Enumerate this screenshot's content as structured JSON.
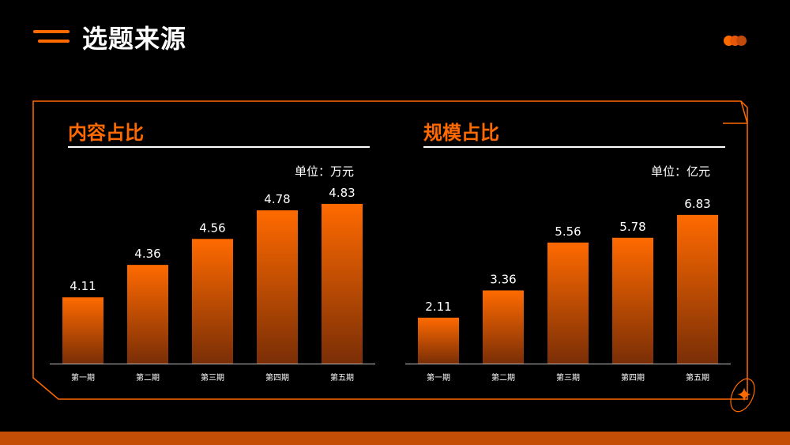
{
  "page": {
    "title": "选题来源"
  },
  "colors": {
    "accent": "#ff6a00",
    "bar_top": "#ff6a00",
    "bar_bottom": "#7a2e06",
    "footer": "#c54e07"
  },
  "icons": {
    "title_decoration": "double-line-icon",
    "top_right": "three-dots-icon",
    "bottom_right": "sparkle-star-icon"
  },
  "panels": [
    {
      "title": "内容占比",
      "unit": "单位：万元"
    },
    {
      "title": "规模占比",
      "unit": "单位：亿元"
    }
  ],
  "chart_data": [
    {
      "type": "bar",
      "title": "内容占比",
      "categories": [
        "第一期",
        "第二期",
        "第三期",
        "第四期",
        "第五期"
      ],
      "values": [
        4.11,
        4.36,
        4.56,
        4.78,
        4.83
      ],
      "ylabel": "单位：万元",
      "ylim": [
        3.6,
        5.0
      ],
      "grid": false
    },
    {
      "type": "bar",
      "title": "规模占比",
      "categories": [
        "第一期",
        "第二期",
        "第三期",
        "第四期",
        "第五期"
      ],
      "values": [
        2.11,
        3.36,
        5.56,
        5.78,
        6.83
      ],
      "ylabel": "单位：亿元",
      "ylim": [
        0,
        8.35
      ],
      "grid": false
    }
  ]
}
